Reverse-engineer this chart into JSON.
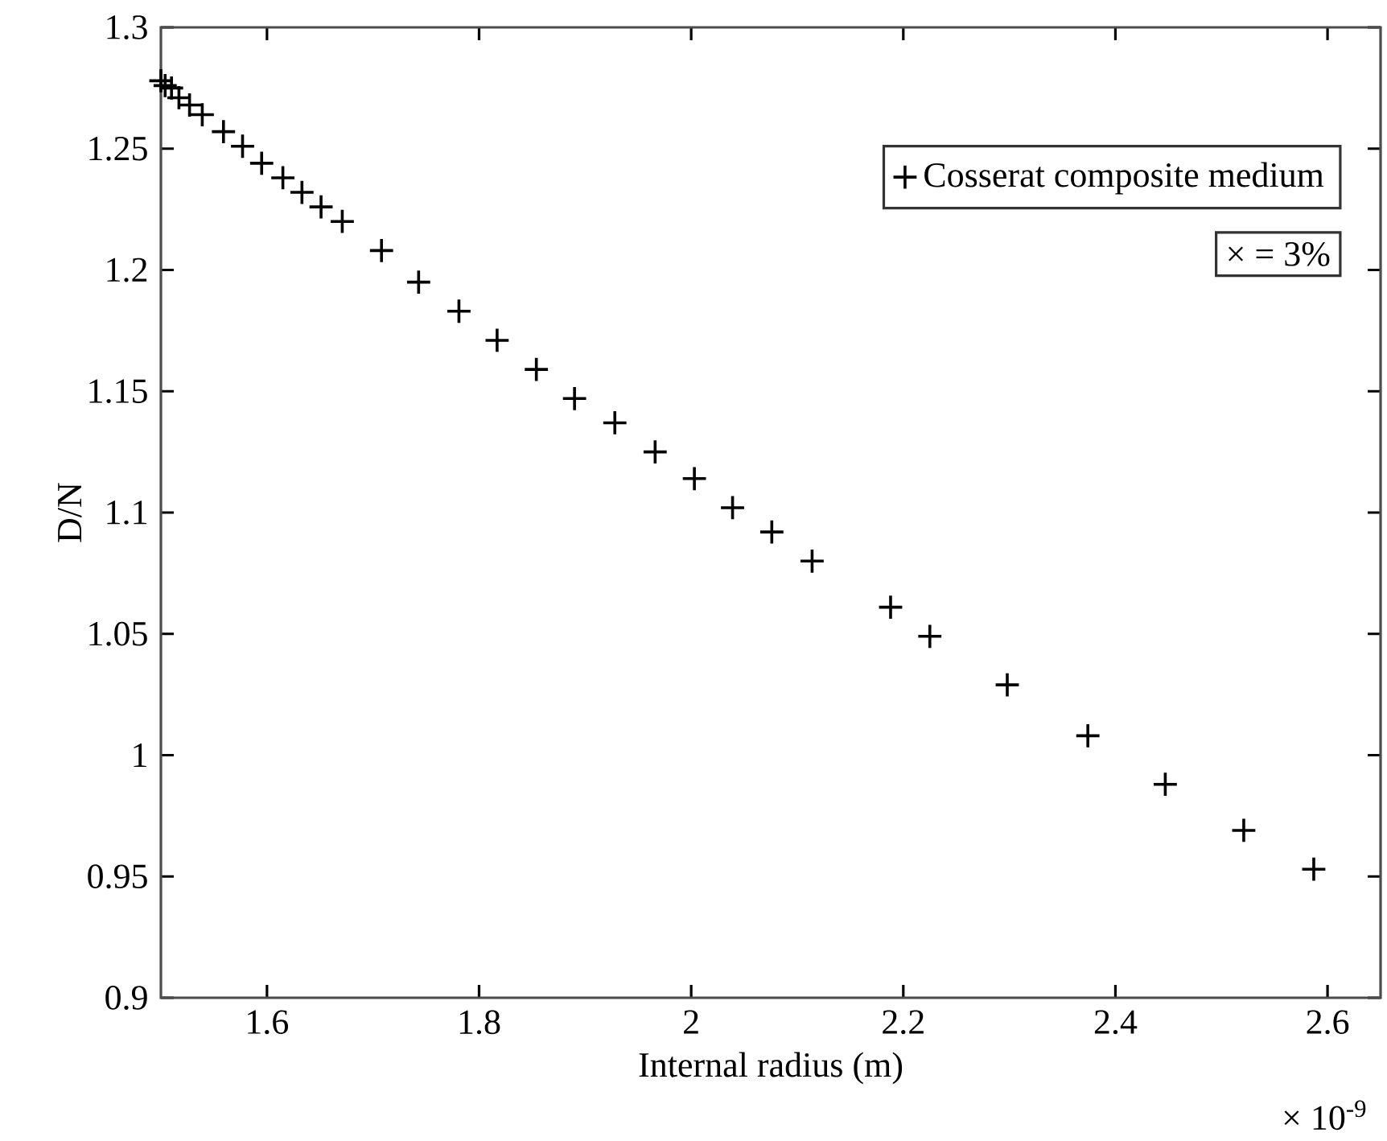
{
  "chart_data": {
    "type": "scatter",
    "xlabel": "Internal radius (m)",
    "ylabel": "D/N",
    "xlim": [
      1.5,
      2.65
    ],
    "ylim": [
      0.9,
      1.3
    ],
    "xticks": [
      1.6,
      1.8,
      2,
      2.2,
      2.4,
      2.6
    ],
    "yticks": [
      0.9,
      0.95,
      1,
      1.05,
      1.1,
      1.15,
      1.2,
      1.25,
      1.3
    ],
    "marker": "cross",
    "legend": "top right",
    "annotations": [
      "× = 3%",
      "× 10$^{-9}$"
    ],
    "series": [
      {
        "name": "Cosserat composite medium",
        "color": "#000000",
        "x": [
          1.5,
          1.504,
          1.51,
          1.517,
          1.527,
          1.539,
          1.559,
          1.577,
          1.595,
          1.615,
          1.633,
          1.651,
          1.671,
          1.708,
          1.743,
          1.781,
          1.817,
          1.854,
          1.89,
          1.928,
          1.966,
          2.003,
          2.039,
          2.076,
          2.114,
          2.188,
          2.225,
          2.298,
          2.374,
          2.447,
          2.521,
          2.587
        ],
        "values": [
          1.278,
          1.276,
          1.275,
          1.271,
          1.268,
          1.264,
          1.257,
          1.251,
          1.244,
          1.238,
          1.232,
          1.226,
          1.22,
          1.208,
          1.195,
          1.183,
          1.171,
          1.159,
          1.147,
          1.137,
          1.125,
          1.114,
          1.102,
          1.092,
          1.08,
          1.061,
          1.049,
          1.029,
          1.008,
          0.988,
          0.969,
          0.953
        ]
      }
    ]
  }
}
